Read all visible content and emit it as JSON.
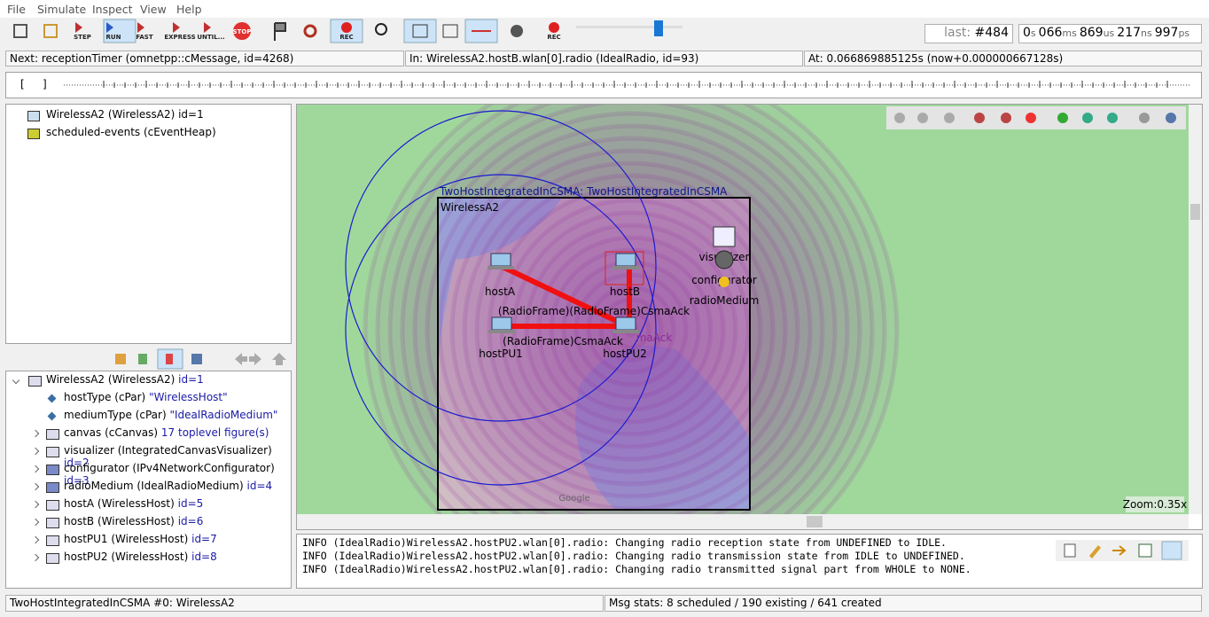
{
  "menu": [
    "File",
    "Simulate",
    "Inspect",
    "View",
    "Help"
  ],
  "toolbar": {
    "buttons": [
      "STEP",
      "RUN",
      "FAST",
      "EXPRESS",
      "UNTIL...",
      "STOP",
      "REC",
      "REC"
    ]
  },
  "counter": {
    "label": "last:",
    "value": "#484"
  },
  "time": [
    "0",
    "s",
    "066",
    "ms",
    "869",
    "us",
    "217",
    "ns",
    "997",
    "ps"
  ],
  "status": {
    "next": "Next: receptionTimer (omnetpp::cMessage, id=4268)",
    "in": "In: WirelessA2.hostB.wlan[0].radio (IdealRadio, id=93)",
    "at": "At: 0.066869885125s (now+0.000000667128s)"
  },
  "timeline": {
    "start": "[",
    "end": "]"
  },
  "object_tree": [
    "WirelessA2 (WirelessA2) id=1",
    "scheduled-events (cEventHeap)"
  ],
  "inspector": [
    {
      "text": "WirelessA2 (WirelessA2)",
      "extra": "id=1"
    },
    {
      "text": "hostType (cPar)",
      "extra": "\"WirelessHost\""
    },
    {
      "text": "mediumType (cPar)",
      "extra": "\"IdealRadioMedium\""
    },
    {
      "text": "canvas (cCanvas)",
      "extra": "17 toplevel figure(s)"
    },
    {
      "text": "visualizer (IntegratedCanvasVisualizer)",
      "extra": "id=2"
    },
    {
      "text": "configurator (IPv4NetworkConfigurator)",
      "extra": "id=3"
    },
    {
      "text": "radioMedium (IdealRadioMedium)",
      "extra": "id=4"
    },
    {
      "text": "hostA (WirelessHost)",
      "extra": "id=5"
    },
    {
      "text": "hostB (WirelessHost)",
      "extra": "id=6"
    },
    {
      "text": "hostPU1 (WirelessHost)",
      "extra": "id=7"
    },
    {
      "text": "hostPU2 (WirelessHost)",
      "extra": "id=8"
    }
  ],
  "canvas": {
    "network": "TwoHostIntegratedInCSMA: TwoHostIntegratedInCSMA",
    "module": "WirelessA2",
    "nodes": [
      "hostA",
      "hostB",
      "hostPU1",
      "hostPU2",
      "visualizer",
      "configurator",
      "radioMedium"
    ],
    "messages": [
      "(RadioFrame)(RadioFrame)CsmaAck",
      "(RadioFrame)CsmaAck",
      "maAck"
    ],
    "map_credit": "Google",
    "zoom": "Zoom:0.35x"
  },
  "log": [
    "INFO (IdealRadio)WirelessA2.hostPU2.wlan[0].radio: Changing radio reception state from UNDEFINED to IDLE.",
    "INFO (IdealRadio)WirelessA2.hostPU2.wlan[0].radio: Changing radio transmission state from IDLE to UNDEFINED.",
    "INFO (IdealRadio)WirelessA2.hostPU2.wlan[0].radio: Changing radio transmitted signal part from WHOLE to NONE."
  ],
  "statusbar": {
    "left": "TwoHostIntegratedInCSMA #0: WirelessA2",
    "right": "Msg stats: 8 scheduled / 190 existing / 641 created"
  }
}
